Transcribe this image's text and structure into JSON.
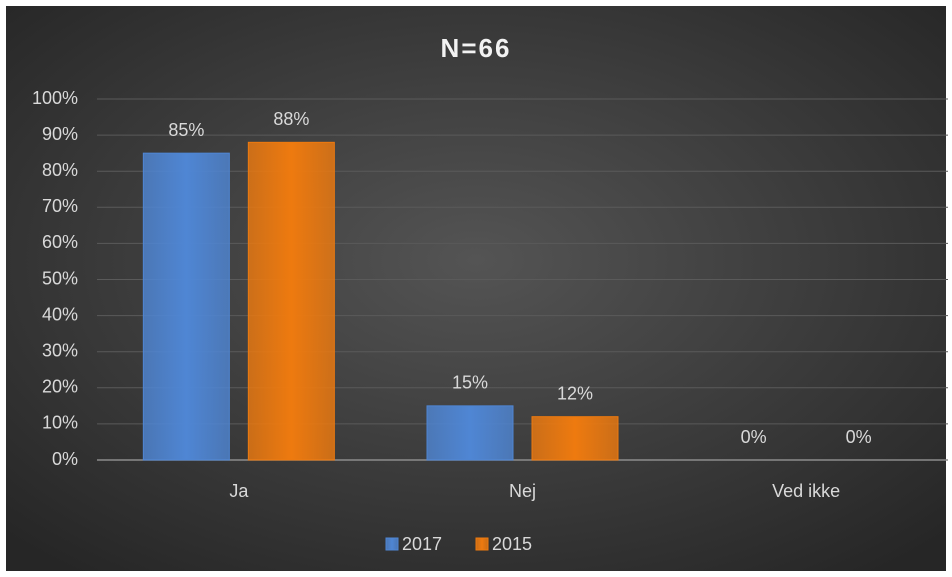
{
  "chart_data": {
    "type": "bar",
    "title": "N=66",
    "categories": [
      "Ja",
      "Nej",
      "Ved ikke"
    ],
    "series": [
      {
        "name": "2017",
        "color": "#4f86d4",
        "values": [
          85,
          15,
          0
        ],
        "value_labels": [
          "85%",
          "15%",
          "0%"
        ]
      },
      {
        "name": "2015",
        "color": "#ee7a0f",
        "values": [
          88,
          12,
          0
        ],
        "value_labels": [
          "88%",
          "12%",
          "0%"
        ]
      }
    ],
    "ylim": [
      0,
      100
    ],
    "yticks": [
      {
        "value": 0,
        "label": "0%"
      },
      {
        "value": 10,
        "label": "10%"
      },
      {
        "value": 20,
        "label": "20%"
      },
      {
        "value": 30,
        "label": "30%"
      },
      {
        "value": 40,
        "label": "40%"
      },
      {
        "value": 50,
        "label": "50%"
      },
      {
        "value": 60,
        "label": "60%"
      },
      {
        "value": 70,
        "label": "70%"
      },
      {
        "value": 80,
        "label": "80%"
      },
      {
        "value": 90,
        "label": "90%"
      },
      {
        "value": 100,
        "label": "100%"
      }
    ],
    "grid": true,
    "legend": "bottom"
  }
}
